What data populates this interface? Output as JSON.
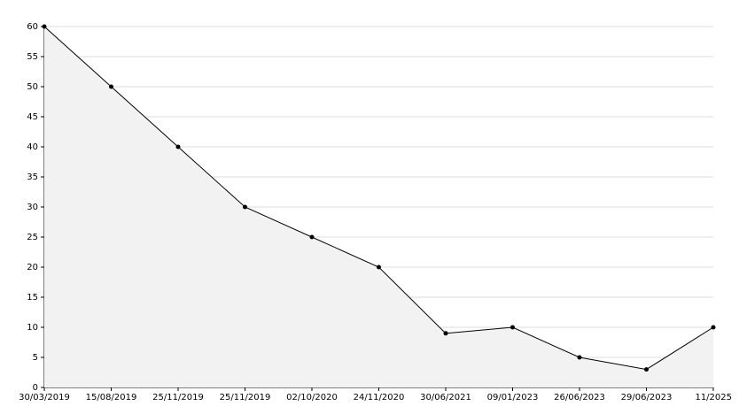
{
  "chart_data": {
    "type": "area",
    "categories": [
      "30/03/2019",
      "15/08/2019",
      "25/11/2019",
      "25/11/2019",
      "02/10/2020",
      "24/11/2020",
      "30/06/2021",
      "09/01/2023",
      "26/06/2023",
      "29/06/2023",
      "11/2025"
    ],
    "values": [
      60,
      50,
      40,
      30,
      25,
      20,
      9,
      10,
      5,
      3,
      10
    ],
    "color": "#000000",
    "fill": "#f2f2f2",
    "ylim": [
      0,
      60
    ],
    "yticks": [
      0,
      5,
      10,
      15,
      20,
      25,
      30,
      35,
      40,
      45,
      50,
      55,
      60
    ],
    "grid": true
  }
}
